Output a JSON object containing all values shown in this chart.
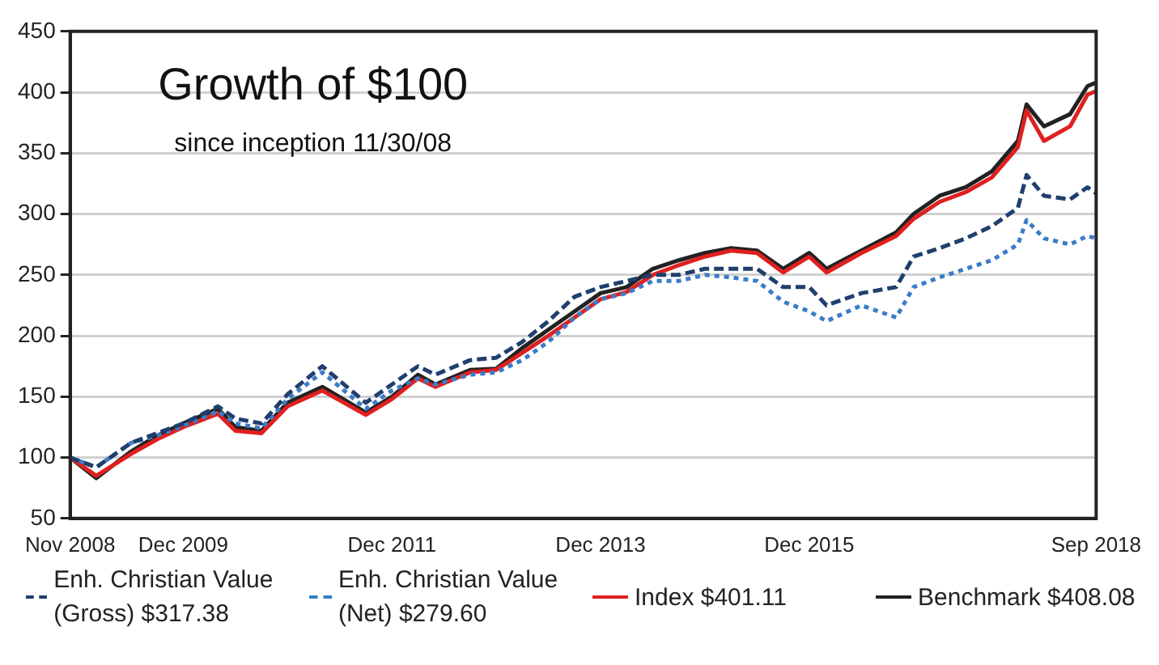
{
  "chart_data": {
    "type": "line",
    "title": "Growth of $100",
    "subtitle": "since inception 11/30/08",
    "x": [
      "2008-11",
      "2009-02",
      "2009-06",
      "2009-09",
      "2009-12",
      "2010-04",
      "2010-06",
      "2010-09",
      "2010-12",
      "2011-04",
      "2011-09",
      "2011-12",
      "2012-03",
      "2012-05",
      "2012-09",
      "2012-12",
      "2013-03",
      "2013-06",
      "2013-09",
      "2013-12",
      "2014-03",
      "2014-06",
      "2014-09",
      "2014-12",
      "2015-03",
      "2015-06",
      "2015-09",
      "2015-12",
      "2016-02",
      "2016-06",
      "2016-10",
      "2016-12",
      "2017-03",
      "2017-06",
      "2017-09",
      "2017-12",
      "2018-01",
      "2018-03",
      "2018-06",
      "2018-08",
      "2018-09"
    ],
    "series": [
      {
        "name": "Enh. Christian Value (Gross) $317.38",
        "color": "#1f3f6e",
        "line_style": "dashed",
        "values": [
          100,
          92,
          112,
          120,
          128,
          142,
          132,
          128,
          152,
          175,
          145,
          160,
          175,
          168,
          180,
          182,
          195,
          212,
          232,
          240,
          245,
          250,
          250,
          255,
          255,
          255,
          240,
          240,
          225,
          235,
          240,
          265,
          272,
          280,
          290,
          305,
          332,
          315,
          312,
          322,
          317
        ]
      },
      {
        "name": "Enh. Christian Value (Net) $279.60",
        "color": "#3a7cc8",
        "line_style": "dotted",
        "values": [
          100,
          92,
          112,
          118,
          126,
          138,
          128,
          124,
          148,
          170,
          140,
          155,
          165,
          160,
          168,
          170,
          180,
          195,
          215,
          230,
          235,
          245,
          245,
          250,
          248,
          245,
          228,
          220,
          212,
          225,
          215,
          240,
          248,
          255,
          262,
          275,
          295,
          280,
          275,
          282,
          280
        ]
      },
      {
        "name": "Index $401.11",
        "color": "#e02020",
        "line_style": "solid",
        "values": [
          100,
          85,
          103,
          115,
          125,
          136,
          122,
          120,
          142,
          155,
          135,
          148,
          165,
          158,
          170,
          172,
          186,
          200,
          215,
          230,
          236,
          250,
          258,
          265,
          270,
          268,
          252,
          265,
          252,
          268,
          282,
          296,
          310,
          318,
          330,
          355,
          385,
          360,
          372,
          398,
          401
        ]
      },
      {
        "name": "Benchmark $408.08",
        "color": "#222222",
        "line_style": "solid",
        "values": [
          100,
          83,
          105,
          118,
          128,
          140,
          125,
          122,
          145,
          158,
          137,
          150,
          168,
          160,
          172,
          173,
          190,
          205,
          220,
          235,
          240,
          255,
          262,
          268,
          272,
          270,
          255,
          268,
          255,
          270,
          285,
          300,
          315,
          322,
          335,
          360,
          390,
          372,
          382,
          405,
          408
        ]
      }
    ],
    "xlim": [
      "2008-11",
      "2018-09"
    ],
    "xticks": [
      {
        "value": "2008-11",
        "label": "Nov 2008"
      },
      {
        "value": "2009-12",
        "label": "Dec 2009"
      },
      {
        "value": "2011-12",
        "label": "Dec 2011"
      },
      {
        "value": "2013-12",
        "label": "Dec 2013"
      },
      {
        "value": "2015-12",
        "label": "Dec 2015"
      },
      {
        "value": "2018-09",
        "label": "Sep 2018"
      }
    ],
    "ylim": [
      50,
      450
    ],
    "yticks": [
      50,
      100,
      150,
      200,
      250,
      300,
      350,
      400,
      450
    ],
    "grid": "y",
    "legend": "bottom",
    "marker": "none"
  }
}
